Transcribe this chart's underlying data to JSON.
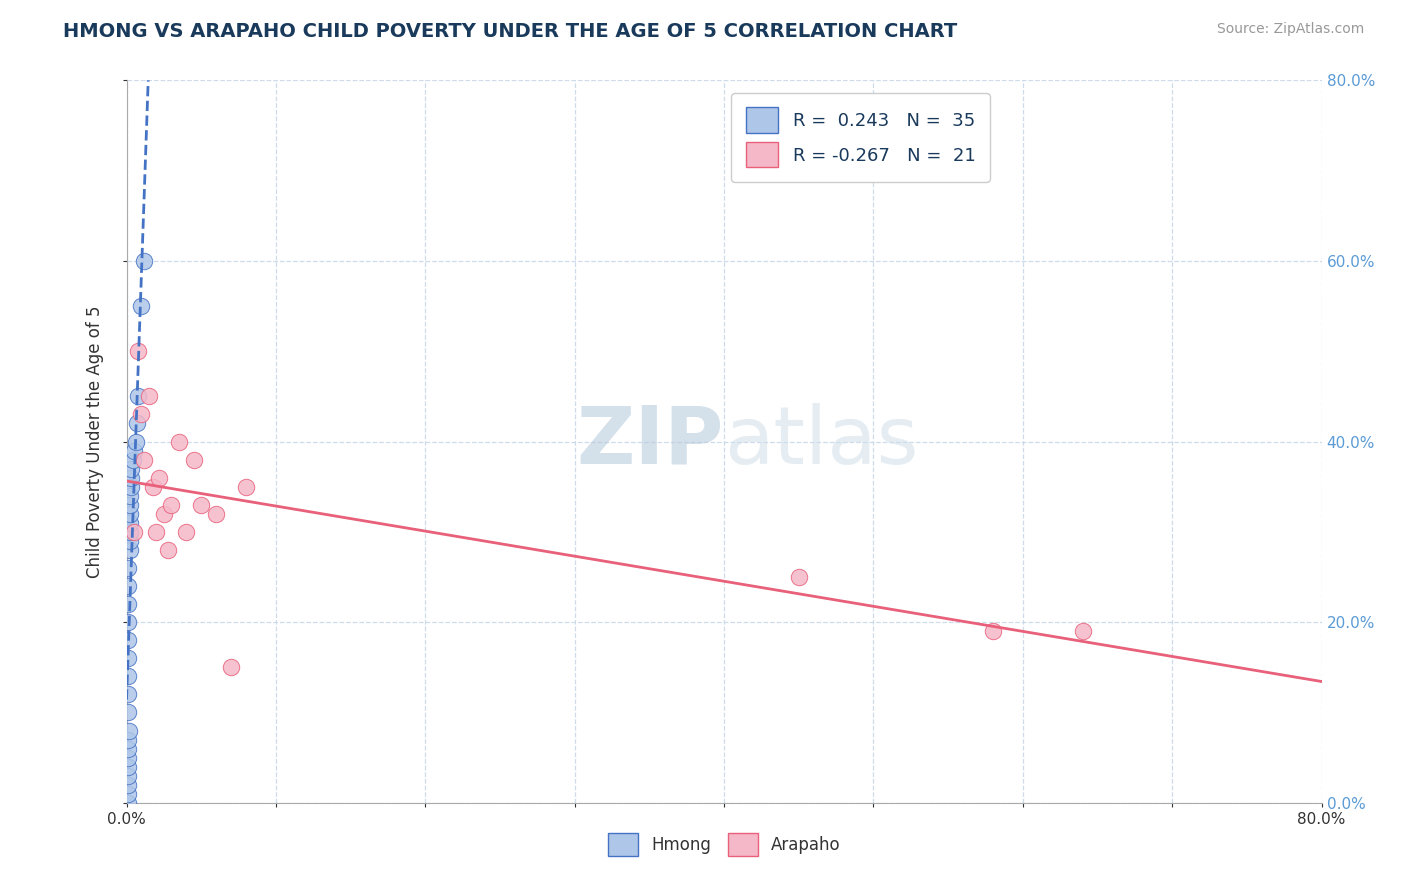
{
  "title": "HMONG VS ARAPAHO CHILD POVERTY UNDER THE AGE OF 5 CORRELATION CHART",
  "source_text": "Source: ZipAtlas.com",
  "ylabel": "Child Poverty Under the Age of 5",
  "xlabel_hmong": "Hmong",
  "xlabel_arapaho": "Arapaho",
  "xmin": 0.0,
  "xmax": 0.8,
  "ymin": 0.0,
  "ymax": 0.8,
  "ytick_major": [
    0.0,
    0.2,
    0.4,
    0.6,
    0.8
  ],
  "xtick_major": [
    0.0,
    0.8
  ],
  "legend_hmong_R": "0.243",
  "legend_hmong_N": "35",
  "legend_arapaho_R": "-0.267",
  "legend_arapaho_N": "21",
  "hmong_color": "#aec6e8",
  "arapaho_color": "#f5b8c8",
  "hmong_line_color": "#4472c4",
  "arapaho_line_color": "#e8607a",
  "watermark_color": "#ccd9e8",
  "hmong_x": [
    0.001,
    0.001,
    0.001,
    0.001,
    0.001,
    0.001,
    0.001,
    0.001,
    0.0015,
    0.001,
    0.001,
    0.001,
    0.001,
    0.001,
    0.001,
    0.001,
    0.001,
    0.001,
    0.002,
    0.002,
    0.002,
    0.002,
    0.002,
    0.002,
    0.002,
    0.003,
    0.003,
    0.003,
    0.004,
    0.005,
    0.006,
    0.007,
    0.008,
    0.01,
    0.012
  ],
  "hmong_y": [
    0.0,
    0.01,
    0.02,
    0.03,
    0.04,
    0.05,
    0.06,
    0.07,
    0.08,
    0.1,
    0.12,
    0.14,
    0.16,
    0.18,
    0.2,
    0.22,
    0.24,
    0.26,
    0.28,
    0.29,
    0.3,
    0.31,
    0.32,
    0.33,
    0.34,
    0.35,
    0.36,
    0.37,
    0.38,
    0.39,
    0.4,
    0.42,
    0.45,
    0.55,
    0.6
  ],
  "arapaho_x": [
    0.005,
    0.008,
    0.01,
    0.012,
    0.015,
    0.018,
    0.02,
    0.022,
    0.025,
    0.028,
    0.03,
    0.035,
    0.04,
    0.045,
    0.05,
    0.06,
    0.07,
    0.08,
    0.45,
    0.58,
    0.64
  ],
  "arapaho_y": [
    0.3,
    0.5,
    0.43,
    0.38,
    0.45,
    0.35,
    0.3,
    0.36,
    0.32,
    0.28,
    0.33,
    0.4,
    0.3,
    0.38,
    0.33,
    0.32,
    0.15,
    0.35,
    0.25,
    0.19,
    0.19
  ]
}
